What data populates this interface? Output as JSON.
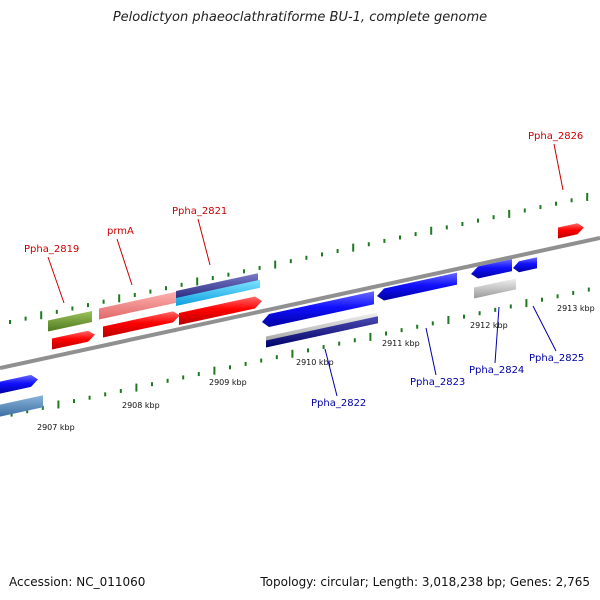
{
  "title": "Pelodictyon phaeoclathratiforme BU-1, complete genome",
  "footer": {
    "accession": "Accession: NC_011060",
    "summary": "Topology: circular; Length: 3,018,238 bp; Genes: 2,765"
  },
  "colors": {
    "forward_label": "#cc0000",
    "reverse_label": "#0000aa",
    "tick": "#1e7a1e",
    "backbone": "#888888"
  },
  "axis_ticks": [
    {
      "label": "2907 kbp"
    },
    {
      "label": "2908 kbp"
    },
    {
      "label": "2909 kbp"
    },
    {
      "label": "2910 kbp"
    },
    {
      "label": "2911 kbp"
    },
    {
      "label": "2912 kbp"
    },
    {
      "label": "2913 kbp"
    }
  ],
  "gene_labels": [
    {
      "name": "Ppha_2819",
      "strand": "forward"
    },
    {
      "name": "prmA",
      "strand": "forward"
    },
    {
      "name": "Ppha_2821",
      "strand": "forward"
    },
    {
      "name": "Ppha_2826",
      "strand": "forward"
    },
    {
      "name": "Ppha_2822",
      "strand": "reverse"
    },
    {
      "name": "Ppha_2823",
      "strand": "reverse"
    },
    {
      "name": "Ppha_2824",
      "strand": "reverse"
    },
    {
      "name": "Ppha_2825",
      "strand": "reverse"
    }
  ]
}
